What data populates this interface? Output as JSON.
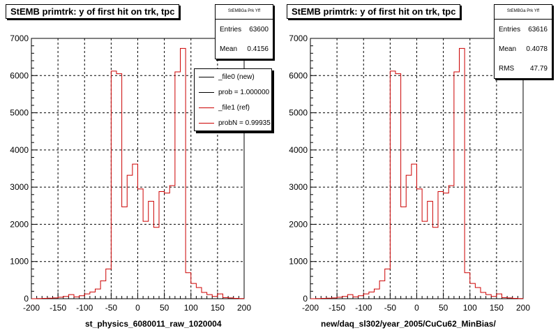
{
  "chart_data": [
    {
      "type": "histogram",
      "title": "StEMB primtrk: y of first hit on trk, tpc",
      "xlabel": "st_physics_6080011_raw_1020004",
      "ylabel": "",
      "xlim": [
        -200,
        200
      ],
      "ylim": [
        0,
        7000
      ],
      "x_ticks": [
        "-200",
        "-150",
        "-100",
        "-50",
        "0",
        "50",
        "100",
        "150",
        "200"
      ],
      "y_ticks": [
        "0",
        "1000",
        "2000",
        "3000",
        "4000",
        "5000",
        "6000",
        "7000"
      ],
      "grid": true,
      "stats": {
        "header": "StEMBGa Prk Yff",
        "entries_label": "Entries",
        "entries": "63600",
        "mean_label": "Mean",
        "mean": "0.4156"
      },
      "legend": {
        "placement": "top-right",
        "entries": [
          {
            "label": "_file0 (new)",
            "color": "#000000"
          },
          {
            "label": "prob = 1.000000",
            "color": "#000000"
          },
          {
            "label": "_file1 (ref)",
            "color": "#cc0000"
          },
          {
            "label": "probN = 0.99935",
            "color": "#cc0000"
          }
        ]
      },
      "series": [
        {
          "name": "_file1 (ref)",
          "color": "#cc0000",
          "bin_edges": [
            -200,
            -190,
            -180,
            -170,
            -160,
            -150,
            -140,
            -130,
            -120,
            -110,
            -100,
            -90,
            -80,
            -70,
            -60,
            -50,
            -40,
            -30,
            -20,
            -10,
            0,
            10,
            20,
            30,
            40,
            50,
            60,
            70,
            80,
            90,
            100,
            110,
            120,
            130,
            140,
            150,
            160,
            170,
            180,
            190,
            200
          ],
          "values": [
            0,
            5,
            10,
            15,
            20,
            40,
            60,
            110,
            50,
            80,
            130,
            180,
            260,
            480,
            800,
            6120,
            6050,
            2470,
            3320,
            3620,
            2950,
            2080,
            2620,
            1920,
            2880,
            2840,
            3040,
            6100,
            6730,
            700,
            410,
            300,
            170,
            110,
            60,
            130,
            30,
            20,
            10,
            5
          ]
        }
      ]
    },
    {
      "type": "histogram",
      "title": "StEMB primtrk: y of first hit on trk, tpc",
      "xlabel": "new/daq_sl302/year_2005/CuCu62_MinBias/",
      "ylabel": "",
      "xlim": [
        -200,
        200
      ],
      "ylim": [
        0,
        7000
      ],
      "x_ticks": [
        "-200",
        "-150",
        "-100",
        "-50",
        "0",
        "50",
        "100",
        "150",
        "200"
      ],
      "y_ticks": [
        "0",
        "1000",
        "2000",
        "3000",
        "4000",
        "5000",
        "6000",
        "7000"
      ],
      "grid": true,
      "stats": {
        "header": "StEMBGa Prk Yff",
        "entries_label": "Entries",
        "entries": "63616",
        "mean_label": "Mean",
        "mean": "0.4078",
        "rms_label": "RMS",
        "rms": "47.79"
      },
      "series": [
        {
          "name": "",
          "color": "#cc0000",
          "bin_edges": [
            -200,
            -190,
            -180,
            -170,
            -160,
            -150,
            -140,
            -130,
            -120,
            -110,
            -100,
            -90,
            -80,
            -70,
            -60,
            -50,
            -40,
            -30,
            -20,
            -10,
            0,
            10,
            20,
            30,
            40,
            50,
            60,
            70,
            80,
            90,
            100,
            110,
            120,
            130,
            140,
            150,
            160,
            170,
            180,
            190,
            200
          ],
          "values": [
            0,
            5,
            10,
            15,
            20,
            40,
            60,
            110,
            50,
            80,
            130,
            180,
            260,
            480,
            800,
            6120,
            6050,
            2470,
            3320,
            3620,
            2950,
            2080,
            2620,
            1920,
            2880,
            2840,
            3040,
            6100,
            6730,
            700,
            410,
            300,
            170,
            110,
            60,
            130,
            30,
            20,
            10,
            5
          ]
        }
      ]
    }
  ]
}
